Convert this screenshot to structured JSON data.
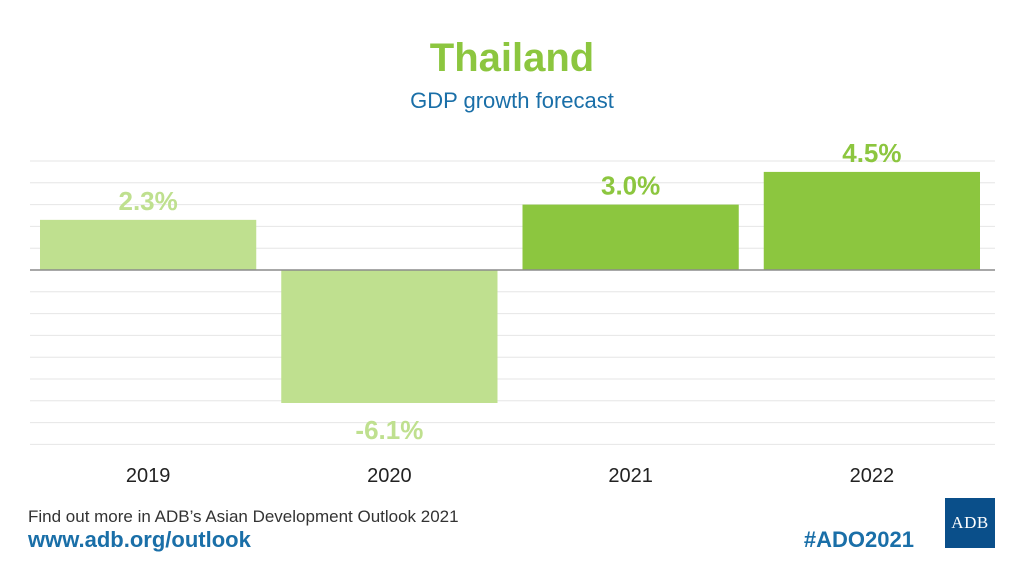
{
  "header": {
    "title": "Thailand",
    "subtitle": "GDP growth forecast"
  },
  "footer": {
    "line1": "Find out more in ADB’s Asian Development Outlook 2021",
    "url": "www.adb.org/outlook",
    "hashtag": "#ADO2021",
    "logo_text": "ADB"
  },
  "colors": {
    "light_green": "#bfe08f",
    "dark_green": "#8cc63f",
    "blue": "#1a6fa8",
    "logo_blue": "#0a4f8a"
  },
  "chart_data": {
    "type": "bar",
    "title": "Thailand",
    "subtitle": "GDP growth forecast",
    "categories": [
      "2019",
      "2020",
      "2021",
      "2022"
    ],
    "values": [
      2.3,
      -6.1,
      3.0,
      4.5
    ],
    "data_labels": [
      "2.3%",
      "-6.1%",
      "3.0%",
      "4.5%"
    ],
    "bar_colors": [
      "#bfe08f",
      "#bfe08f",
      "#8cc63f",
      "#8cc63f"
    ],
    "label_colors": [
      "#bfe08f",
      "#bfe08f",
      "#8cc63f",
      "#8cc63f"
    ],
    "ylim": [
      -7.8,
      5.0
    ],
    "gridlines": [
      5,
      4,
      3,
      2,
      1,
      0,
      -1,
      -2,
      -3,
      -4,
      -5,
      -6,
      -7,
      -8
    ],
    "grid": true,
    "xlabel": "",
    "ylabel": ""
  }
}
